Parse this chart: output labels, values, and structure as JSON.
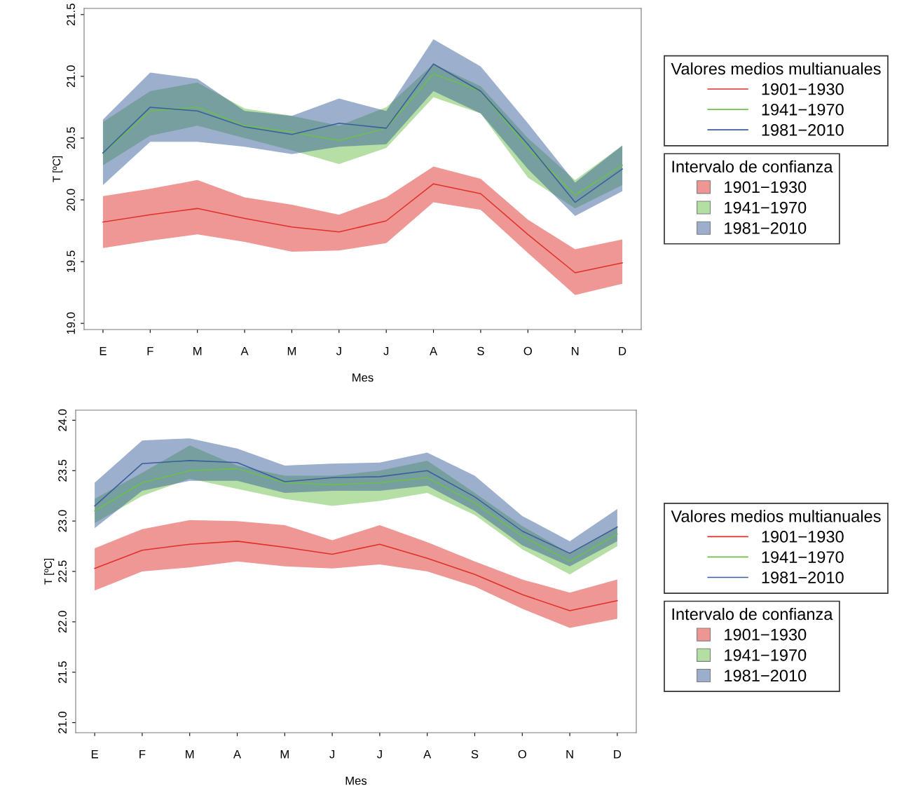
{
  "chart_data": [
    {
      "type": "line",
      "xlabel": "Mes",
      "ylabel": "T [ºC]",
      "legend_title": [
        "Valores medios multianuales",
        "Intervalo de confianza"
      ],
      "legend": "right",
      "grid": false,
      "categories": [
        "E",
        "F",
        "M",
        "A",
        "M",
        "J",
        "J",
        "A",
        "S",
        "O",
        "N",
        "D"
      ],
      "ylim": [
        18.95,
        21.55
      ],
      "yticks": [
        {
          "value": 19.0,
          "label": "19.0"
        },
        {
          "value": 19.5,
          "label": "19.5"
        },
        {
          "value": 20.0,
          "label": "20.0"
        },
        {
          "value": 20.5,
          "label": "20.5"
        },
        {
          "value": 21.0,
          "label": "21.0"
        },
        {
          "value": 21.5,
          "label": "21.5"
        }
      ],
      "series": [
        {
          "name": "1901−1930",
          "color": "#e0302a",
          "values": [
            19.82,
            19.88,
            19.93,
            19.85,
            19.78,
            19.74,
            19.83,
            20.13,
            20.05,
            19.72,
            19.41,
            19.49
          ],
          "lower": [
            19.61,
            19.67,
            19.72,
            19.66,
            19.58,
            19.59,
            19.65,
            19.98,
            19.92,
            19.57,
            19.23,
            19.32
          ],
          "upper": [
            20.03,
            20.09,
            20.16,
            20.02,
            19.96,
            19.88,
            20.02,
            20.27,
            20.17,
            19.84,
            19.6,
            19.68
          ]
        },
        {
          "name": "1941−1970",
          "color": "#6cc04a",
          "values": [
            20.38,
            20.72,
            20.75,
            20.6,
            20.55,
            20.48,
            20.58,
            21.02,
            20.88,
            20.42,
            20.04,
            20.28
          ],
          "lower": [
            20.28,
            20.52,
            20.6,
            20.5,
            20.4,
            20.29,
            20.42,
            20.83,
            20.7,
            20.18,
            19.93,
            20.12
          ],
          "upper": [
            20.63,
            20.88,
            20.95,
            20.74,
            20.68,
            20.6,
            20.75,
            21.1,
            20.92,
            20.5,
            20.16,
            20.44
          ]
        },
        {
          "name": "1981−2010",
          "color": "#3a5f9a",
          "values": [
            20.38,
            20.75,
            20.72,
            20.59,
            20.53,
            20.62,
            20.58,
            21.1,
            20.88,
            20.45,
            19.98,
            20.25
          ],
          "lower": [
            20.12,
            20.47,
            20.47,
            20.43,
            20.37,
            20.43,
            20.45,
            20.88,
            20.7,
            20.25,
            19.87,
            20.07
          ],
          "upper": [
            20.65,
            21.03,
            20.98,
            20.72,
            20.68,
            20.82,
            20.72,
            21.3,
            21.08,
            20.62,
            20.14,
            20.44
          ]
        }
      ]
    },
    {
      "type": "line",
      "xlabel": "Mes",
      "ylabel": "T [ºC]",
      "legend_title": [
        "Valores medios multianuales",
        "Intervalo de confianza"
      ],
      "legend": "right",
      "grid": false,
      "categories": [
        "E",
        "F",
        "M",
        "A",
        "M",
        "J",
        "J",
        "A",
        "S",
        "O",
        "N",
        "D"
      ],
      "ylim": [
        20.9,
        24.1
      ],
      "yticks": [
        {
          "value": 21.0,
          "label": "21.0"
        },
        {
          "value": 21.5,
          "label": "21.5"
        },
        {
          "value": 22.0,
          "label": "22.0"
        },
        {
          "value": 22.5,
          "label": "22.5"
        },
        {
          "value": 23.0,
          "label": "23.0"
        },
        {
          "value": 23.5,
          "label": "23.5"
        },
        {
          "value": 24.0,
          "label": "24.0"
        }
      ],
      "series": [
        {
          "name": "1901−1930",
          "color": "#e0302a",
          "values": [
            22.53,
            22.71,
            22.77,
            22.8,
            22.74,
            22.67,
            22.77,
            22.63,
            22.47,
            22.27,
            22.11,
            22.21
          ],
          "lower": [
            22.31,
            22.5,
            22.54,
            22.6,
            22.55,
            22.53,
            22.57,
            22.5,
            22.35,
            22.13,
            21.94,
            22.03
          ],
          "upper": [
            22.73,
            22.92,
            23.01,
            23.0,
            22.96,
            22.81,
            22.96,
            22.79,
            22.6,
            22.42,
            22.29,
            22.42
          ]
        },
        {
          "name": "1941−1970",
          "color": "#6cc04a",
          "values": [
            23.1,
            23.38,
            23.5,
            23.52,
            23.38,
            23.36,
            23.38,
            23.43,
            23.18,
            22.85,
            22.6,
            22.87
          ],
          "lower": [
            22.98,
            23.25,
            23.42,
            23.32,
            23.22,
            23.15,
            23.2,
            23.28,
            23.06,
            22.72,
            22.47,
            22.75
          ],
          "upper": [
            23.22,
            23.48,
            23.75,
            23.55,
            23.45,
            23.45,
            23.5,
            23.6,
            23.28,
            22.95,
            22.68,
            22.95
          ]
        },
        {
          "name": "1981−2010",
          "color": "#3a5f9a",
          "values": [
            23.15,
            23.57,
            23.6,
            23.58,
            23.39,
            23.43,
            23.44,
            23.5,
            23.24,
            22.9,
            22.68,
            22.94
          ],
          "lower": [
            22.93,
            23.3,
            23.4,
            23.4,
            23.28,
            23.3,
            23.3,
            23.35,
            23.1,
            22.76,
            22.55,
            22.8
          ],
          "upper": [
            23.38,
            23.8,
            23.82,
            23.72,
            23.55,
            23.57,
            23.58,
            23.68,
            23.45,
            23.05,
            22.8,
            23.12
          ]
        }
      ]
    }
  ]
}
